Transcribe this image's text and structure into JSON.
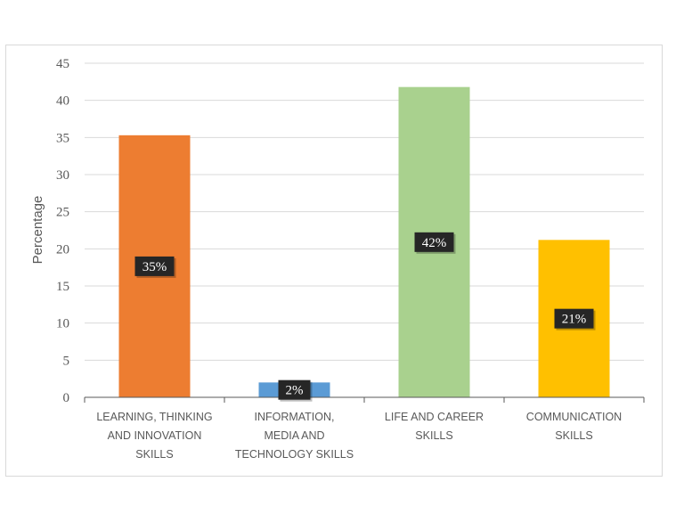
{
  "chart_data": {
    "type": "bar",
    "title": "",
    "xlabel": "",
    "ylabel": "Percentage",
    "ylim": [
      0,
      45
    ],
    "yticks": [
      0,
      5,
      10,
      15,
      20,
      25,
      30,
      35,
      40,
      45
    ],
    "grid": true,
    "categories": [
      [
        "LEARNING, THINKING",
        "AND INNOVATION",
        "SKILLS"
      ],
      [
        "INFORMATION,",
        "MEDIA AND",
        "TECHNOLOGY SKILLS"
      ],
      [
        "LIFE AND CAREER",
        "SKILLS"
      ],
      [
        "COMMUNICATION",
        "SKILLS"
      ]
    ],
    "values": [
      35.3,
      2,
      41.8,
      21.2
    ],
    "data_labels": [
      "35%",
      "2%",
      "42%",
      "21%"
    ],
    "colors": [
      "#ED7D31",
      "#5B9BD5",
      "#A9D18E",
      "#FFC000"
    ]
  }
}
